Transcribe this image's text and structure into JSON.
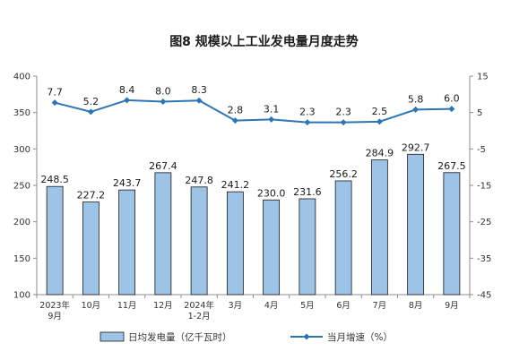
{
  "chart_data": {
    "type": "bar",
    "title": "图8  规模以上工业发电量月度走势",
    "categories": [
      [
        "2023年",
        "9月"
      ],
      [
        "10月"
      ],
      [
        "11月"
      ],
      [
        "12月"
      ],
      [
        "2024年",
        "1-2月"
      ],
      [
        "3月"
      ],
      [
        "4月"
      ],
      [
        "5月"
      ],
      [
        "6月"
      ],
      [
        "7月"
      ],
      [
        "8月"
      ],
      [
        "9月"
      ]
    ],
    "series": [
      {
        "name": "日均发电量（亿千瓦时）",
        "type": "bar",
        "axis": "left",
        "color": "#9dc3e6",
        "values": [
          248.5,
          227.2,
          243.7,
          267.4,
          247.8,
          241.2,
          230.0,
          231.6,
          256.2,
          284.9,
          292.7,
          267.5
        ],
        "labels": [
          "248.5",
          "227.2",
          "243.7",
          "267.4",
          "247.8",
          "241.2",
          "230.0",
          "231.6",
          "256.2",
          "284.9",
          "292.7",
          "267.5"
        ]
      },
      {
        "name": "当月增速（%）",
        "type": "line",
        "axis": "right",
        "color": "#2e75b6",
        "values": [
          7.7,
          5.2,
          8.4,
          8.0,
          8.3,
          2.8,
          3.1,
          2.3,
          2.3,
          2.5,
          5.8,
          6.0
        ],
        "labels": [
          "7.7",
          "5.2",
          "8.4",
          "8.0",
          "8.3",
          "2.8",
          "3.1",
          "2.3",
          "2.3",
          "2.5",
          "5.8",
          "6.0"
        ]
      }
    ],
    "y_left": {
      "min": 100,
      "max": 400,
      "ticks": [
        100,
        150,
        200,
        250,
        300,
        350,
        400
      ]
    },
    "y_right": {
      "min": -45,
      "max": 15,
      "ticks": [
        -45,
        -35,
        -25,
        -15,
        -5,
        5,
        15
      ]
    },
    "legend_position": "bottom",
    "grid": false
  }
}
